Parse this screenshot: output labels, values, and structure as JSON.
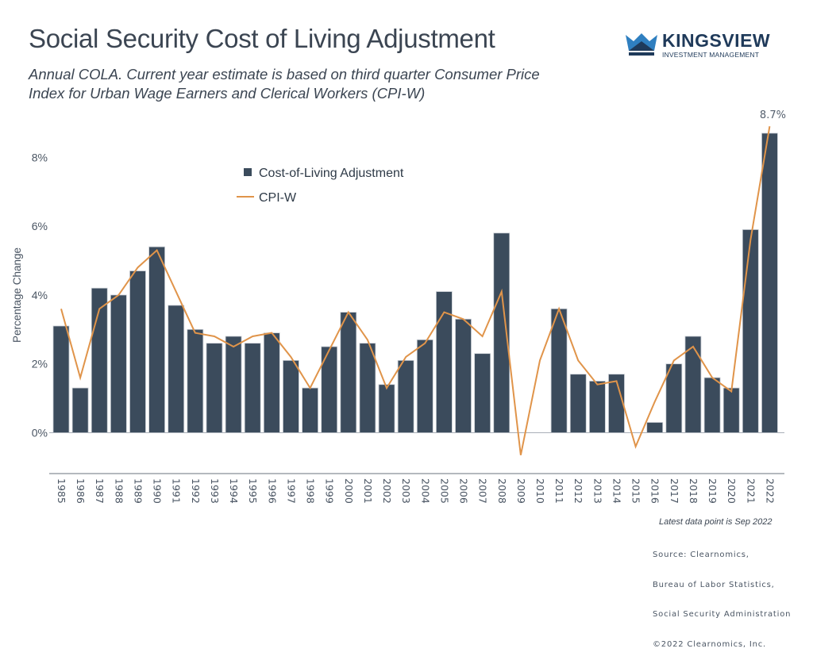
{
  "header": {
    "title": "Social Security Cost of Living Adjustment",
    "subtitle_line1": "Annual COLA. Current year estimate is based on third quarter Consumer Price",
    "subtitle_line2": "Index for Urban Wage Earners and Clerical Workers (CPI-W)"
  },
  "logo": {
    "name": "KINGSVIEW",
    "tagline": "INVESTMENT MANAGEMENT",
    "icon": "crown-icon",
    "colors": {
      "dark": "#1f3a5a",
      "light": "#2f7fc0"
    }
  },
  "footer": {
    "note": "Latest data point is Sep 2022",
    "source_lines": [
      "Source: Clearnomics,",
      "Bureau of Labor Statistics,",
      "Social Security Administration",
      "©2022 Clearnomics, Inc."
    ]
  },
  "chart_data": {
    "type": "bar",
    "title": "Social Security Cost of Living Adjustment",
    "xlabel": "",
    "ylabel": "Percentage Change",
    "ylim": [
      -1.2,
      9.0
    ],
    "yticks": [
      0,
      2,
      4,
      6,
      8
    ],
    "ytick_labels": [
      "0%",
      "2%",
      "4%",
      "6%",
      "8%"
    ],
    "grid": false,
    "legend_position": "top-left",
    "categories": [
      "1985",
      "1986",
      "1987",
      "1988",
      "1989",
      "1990",
      "1991",
      "1992",
      "1993",
      "1994",
      "1995",
      "1996",
      "1997",
      "1998",
      "1999",
      "2000",
      "2001",
      "2002",
      "2003",
      "2004",
      "2005",
      "2006",
      "2007",
      "2008",
      "2009",
      "2010",
      "2011",
      "2012",
      "2013",
      "2014",
      "2015",
      "2016",
      "2017",
      "2018",
      "2019",
      "2020",
      "2021",
      "2022"
    ],
    "series": [
      {
        "name": "Cost-of-Living Adjustment",
        "kind": "bar",
        "color": "#3b4b5c",
        "values": [
          3.1,
          1.3,
          4.2,
          4.0,
          4.7,
          5.4,
          3.7,
          3.0,
          2.6,
          2.8,
          2.6,
          2.9,
          2.1,
          1.3,
          2.5,
          3.5,
          2.6,
          1.4,
          2.1,
          2.7,
          4.1,
          3.3,
          2.3,
          5.8,
          0.0,
          0.0,
          3.6,
          1.7,
          1.5,
          1.7,
          0.0,
          0.3,
          2.0,
          2.8,
          1.6,
          1.3,
          5.9,
          8.7
        ]
      },
      {
        "name": "CPI-W",
        "kind": "line",
        "color": "#e0944a",
        "values": [
          3.6,
          1.6,
          3.6,
          4.0,
          4.8,
          5.3,
          4.1,
          2.9,
          2.8,
          2.5,
          2.8,
          2.9,
          2.2,
          1.3,
          2.4,
          3.5,
          2.7,
          1.3,
          2.2,
          2.6,
          3.5,
          3.3,
          2.8,
          4.1,
          -0.65,
          2.1,
          3.6,
          2.1,
          1.4,
          1.5,
          -0.4,
          0.9,
          2.1,
          2.5,
          1.6,
          1.2,
          5.6,
          8.9
        ]
      }
    ],
    "annotations": [
      {
        "text": "8.7%",
        "category": "2022",
        "series": "CPI-W"
      }
    ]
  }
}
